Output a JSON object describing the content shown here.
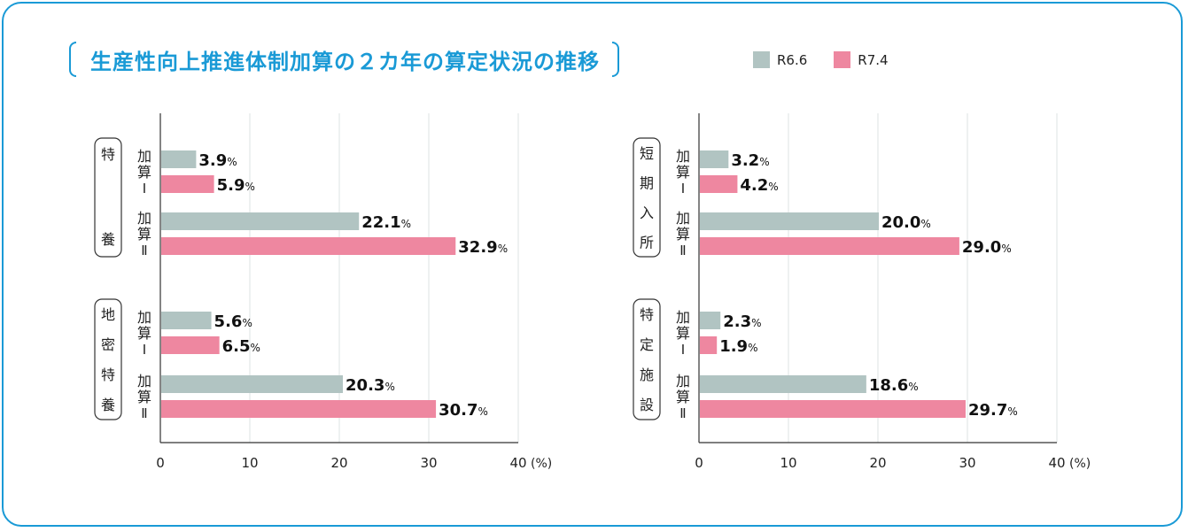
{
  "title": "生産性向上推進体制加算の２カ年の算定状況の推移",
  "legend": [
    {
      "label": "R6.6",
      "color": "#b1c4c2"
    },
    {
      "label": "R7.4",
      "color": "#ee87a0"
    }
  ],
  "chart_data": [
    {
      "type": "bar",
      "orientation": "horizontal",
      "xlim": [
        0,
        40
      ],
      "xticks": [
        "0",
        "10",
        "20",
        "30",
        "40"
      ],
      "xunit": "(%)",
      "grid": true,
      "groups": [
        {
          "label": "特養",
          "rows": [
            {
              "label": "加算Ⅰ",
              "values": [
                3.9,
                5.9
              ]
            },
            {
              "label": "加算Ⅱ",
              "values": [
                22.1,
                32.9
              ]
            }
          ]
        },
        {
          "label": "地密特養",
          "rows": [
            {
              "label": "加算Ⅰ",
              "values": [
                5.6,
                6.5
              ]
            },
            {
              "label": "加算Ⅱ",
              "values": [
                20.3,
                30.7
              ]
            }
          ]
        }
      ]
    },
    {
      "type": "bar",
      "orientation": "horizontal",
      "xlim": [
        0,
        40
      ],
      "xticks": [
        "0",
        "10",
        "20",
        "30",
        "40"
      ],
      "xunit": "(%)",
      "grid": true,
      "groups": [
        {
          "label": "短期入所",
          "rows": [
            {
              "label": "加算Ⅰ",
              "values": [
                3.2,
                4.2
              ]
            },
            {
              "label": "加算Ⅱ",
              "values": [
                20.0,
                29.0
              ]
            }
          ]
        },
        {
          "label": "特定施設",
          "rows": [
            {
              "label": "加算Ⅰ",
              "values": [
                2.3,
                1.9
              ]
            },
            {
              "label": "加算Ⅱ",
              "values": [
                18.6,
                29.7
              ]
            }
          ]
        }
      ]
    }
  ]
}
